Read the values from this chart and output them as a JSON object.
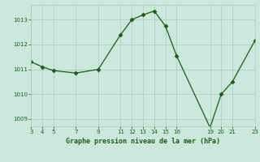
{
  "title": "Graphe pression niveau de la mer (hPa)",
  "x": [
    3,
    4,
    5,
    7,
    9,
    11,
    12,
    13,
    14,
    15,
    16,
    19,
    20,
    21,
    23
  ],
  "y": [
    1011.3,
    1011.1,
    1010.95,
    1010.85,
    1011.0,
    1012.4,
    1013.0,
    1013.2,
    1013.35,
    1012.75,
    1011.55,
    1008.65,
    1010.0,
    1010.5,
    1012.15
  ],
  "line_color": "#1a5c1a",
  "bg_color": "#cce8dc",
  "grid_color": "#aaccbb",
  "text_color": "#1a5c1a",
  "marker": "D",
  "marker_size": 2.5,
  "xlim": [
    3,
    23
  ],
  "ylim": [
    1008.7,
    1013.6
  ],
  "yticks": [
    1009,
    1010,
    1011,
    1012,
    1013
  ],
  "xticks": [
    3,
    4,
    5,
    7,
    9,
    11,
    12,
    13,
    14,
    15,
    16,
    19,
    20,
    21,
    23
  ]
}
